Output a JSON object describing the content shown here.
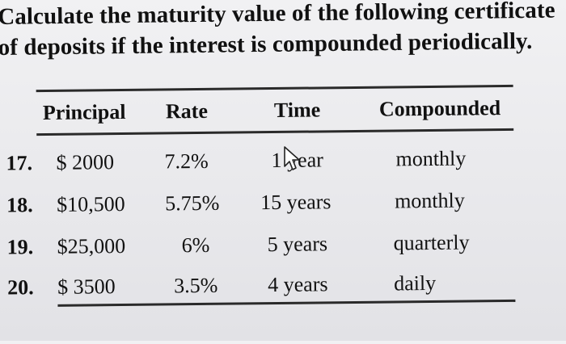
{
  "heading": {
    "line1": "Calculate the maturity value of the following certificate",
    "line2": "of deposits if the interest is compounded periodically."
  },
  "table": {
    "headers": [
      "Principal",
      "Rate",
      "Time",
      "Compounded"
    ],
    "rows": [
      {
        "number": "17.",
        "principal": "$ 2000",
        "rate": "7.2%",
        "time": "1 year",
        "compounded": "monthly"
      },
      {
        "number": "18.",
        "principal": "$10,500",
        "rate": "5.75%",
        "time": "15 years",
        "compounded": "monthly"
      },
      {
        "number": "19.",
        "principal": "$25,000",
        "rate": "6%",
        "time": "5 years",
        "compounded": "quarterly"
      },
      {
        "number": "20.",
        "principal": "$ 3500",
        "rate": "3.5%",
        "time": "4 years",
        "compounded": "daily"
      }
    ]
  },
  "cursor_icon": "mouse-pointer-icon"
}
